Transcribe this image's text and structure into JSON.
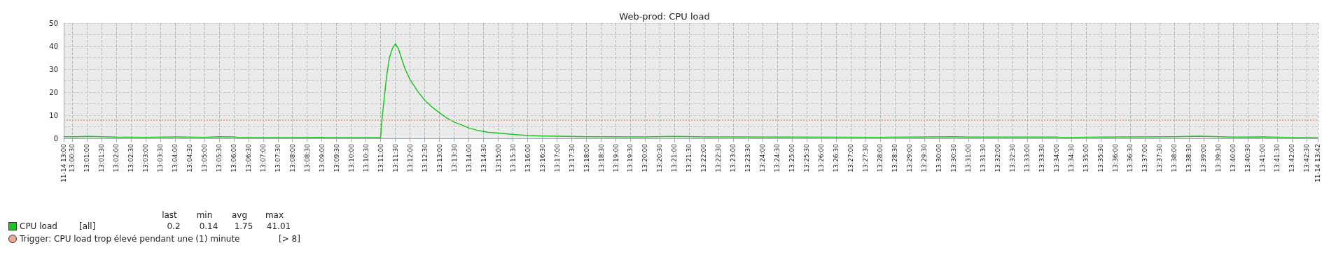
{
  "chart_data": {
    "type": "line",
    "title": "Web-prod: CPU load",
    "xlim": [
      13.0036,
      13.7147
    ],
    "xticks": [
      {
        "value": 13.0036,
        "label": "11-14 13:00"
      },
      {
        "value": 13.00833,
        "label": "13:00:30"
      },
      {
        "value": 13.01667,
        "label": "13:01:00"
      },
      {
        "value": 13.025,
        "label": "13:01:30"
      },
      {
        "value": 13.03333,
        "label": "13:02:00"
      },
      {
        "value": 13.04167,
        "label": "13:02:30"
      },
      {
        "value": 13.05,
        "label": "13:03:00"
      },
      {
        "value": 13.05833,
        "label": "13:03:30"
      },
      {
        "value": 13.06667,
        "label": "13:04:00"
      },
      {
        "value": 13.075,
        "label": "13:04:30"
      },
      {
        "value": 13.08333,
        "label": "13:05:00"
      },
      {
        "value": 13.09167,
        "label": "13:05:30"
      },
      {
        "value": 13.1,
        "label": "13:06:00"
      },
      {
        "value": 13.10833,
        "label": "13:06:30"
      },
      {
        "value": 13.11667,
        "label": "13:07:00"
      },
      {
        "value": 13.125,
        "label": "13:07:30"
      },
      {
        "value": 13.13333,
        "label": "13:08:00"
      },
      {
        "value": 13.14167,
        "label": "13:08:30"
      },
      {
        "value": 13.15,
        "label": "13:09:00"
      },
      {
        "value": 13.15833,
        "label": "13:09:30"
      },
      {
        "value": 13.16667,
        "label": "13:10:00"
      },
      {
        "value": 13.175,
        "label": "13:10:30"
      },
      {
        "value": 13.18333,
        "label": "13:11:00"
      },
      {
        "value": 13.19167,
        "label": "13:11:30"
      },
      {
        "value": 13.2,
        "label": "13:12:00"
      },
      {
        "value": 13.20833,
        "label": "13:12:30"
      },
      {
        "value": 13.21667,
        "label": "13:13:00"
      },
      {
        "value": 13.225,
        "label": "13:13:30"
      },
      {
        "value": 13.23333,
        "label": "13:14:00"
      },
      {
        "value": 13.24167,
        "label": "13:14:30"
      },
      {
        "value": 13.25,
        "label": "13:15:00"
      },
      {
        "value": 13.25833,
        "label": "13:15:30"
      },
      {
        "value": 13.26667,
        "label": "13:16:00"
      },
      {
        "value": 13.275,
        "label": "13:16:30"
      },
      {
        "value": 13.28333,
        "label": "13:17:00"
      },
      {
        "value": 13.29167,
        "label": "13:17:30"
      },
      {
        "value": 13.3,
        "label": "13:18:00"
      },
      {
        "value": 13.30833,
        "label": "13:18:30"
      },
      {
        "value": 13.31667,
        "label": "13:19:00"
      },
      {
        "value": 13.325,
        "label": "13:19:30"
      },
      {
        "value": 13.33333,
        "label": "13:20:00"
      },
      {
        "value": 13.34167,
        "label": "13:20:30"
      },
      {
        "value": 13.35,
        "label": "13:21:00"
      },
      {
        "value": 13.35833,
        "label": "13:21:30"
      },
      {
        "value": 13.36667,
        "label": "13:22:00"
      },
      {
        "value": 13.375,
        "label": "13:22:30"
      },
      {
        "value": 13.38333,
        "label": "13:23:00"
      },
      {
        "value": 13.39167,
        "label": "13:23:30"
      },
      {
        "value": 13.4,
        "label": "13:24:00"
      },
      {
        "value": 13.40833,
        "label": "13:24:30"
      },
      {
        "value": 13.41667,
        "label": "13:25:00"
      },
      {
        "value": 13.425,
        "label": "13:25:30"
      },
      {
        "value": 13.43333,
        "label": "13:26:00"
      },
      {
        "value": 13.44167,
        "label": "13:26:30"
      },
      {
        "value": 13.45,
        "label": "13:27:00"
      },
      {
        "value": 13.45833,
        "label": "13:27:30"
      },
      {
        "value": 13.46667,
        "label": "13:28:00"
      },
      {
        "value": 13.475,
        "label": "13:28:30"
      },
      {
        "value": 13.48333,
        "label": "13:29:00"
      },
      {
        "value": 13.49167,
        "label": "13:29:30"
      },
      {
        "value": 13.5,
        "label": "13:30:00"
      },
      {
        "value": 13.50833,
        "label": "13:30:30"
      },
      {
        "value": 13.51667,
        "label": "13:31:00"
      },
      {
        "value": 13.525,
        "label": "13:31:30"
      },
      {
        "value": 13.53333,
        "label": "13:32:00"
      },
      {
        "value": 13.54167,
        "label": "13:32:30"
      },
      {
        "value": 13.55,
        "label": "13:33:00"
      },
      {
        "value": 13.55833,
        "label": "13:33:30"
      },
      {
        "value": 13.56667,
        "label": "13:34:00"
      },
      {
        "value": 13.575,
        "label": "13:34:30"
      },
      {
        "value": 13.58333,
        "label": "13:35:00"
      },
      {
        "value": 13.59167,
        "label": "13:35:30"
      },
      {
        "value": 13.6,
        "label": "13:36:00"
      },
      {
        "value": 13.60833,
        "label": "13:36:30"
      },
      {
        "value": 13.61667,
        "label": "13:37:00"
      },
      {
        "value": 13.625,
        "label": "13:37:30"
      },
      {
        "value": 13.63333,
        "label": "13:38:00"
      },
      {
        "value": 13.64167,
        "label": "13:38:30"
      },
      {
        "value": 13.65,
        "label": "13:39:00"
      },
      {
        "value": 13.65833,
        "label": "13:39:30"
      },
      {
        "value": 13.66667,
        "label": "13:40:00"
      },
      {
        "value": 13.675,
        "label": "13:40:30"
      },
      {
        "value": 13.68333,
        "label": "13:41:00"
      },
      {
        "value": 13.69167,
        "label": "13:41:30"
      },
      {
        "value": 13.7,
        "label": "13:42:00"
      },
      {
        "value": 13.70833,
        "label": "13:42:30"
      },
      {
        "value": 13.7147,
        "label": "11-14 13:42"
      }
    ],
    "ylim": [
      0,
      50
    ],
    "yticks": [
      0,
      {
        "value": 5,
        "label": null
      },
      10,
      {
        "value": 15,
        "label": null
      },
      20,
      {
        "value": 25,
        "label": null
      },
      30,
      {
        "value": 35,
        "label": null
      },
      40,
      {
        "value": 45,
        "label": null
      },
      50
    ],
    "grid": true,
    "legend": "bottom",
    "marker": "none",
    "line_style": "solid",
    "series": [
      {
        "name": "CPU load",
        "color": "#1ec51e",
        "x": [
          13.0036,
          13.0111,
          13.0167,
          13.025,
          13.0333,
          13.05,
          13.0667,
          13.0833,
          13.0917,
          13.1,
          13.1028,
          13.1333,
          13.15,
          13.1528,
          13.1833,
          13.1839,
          13.185,
          13.1867,
          13.1883,
          13.19,
          13.1917,
          13.1933,
          13.195,
          13.1972,
          13.2,
          13.2042,
          13.2083,
          13.2125,
          13.2167,
          13.2208,
          13.225,
          13.2292,
          13.2333,
          13.2389,
          13.2444,
          13.25,
          13.2583,
          13.2667,
          13.275,
          13.2833,
          13.3,
          13.3333,
          13.35,
          13.3667,
          13.4167,
          13.4667,
          13.5083,
          13.5167,
          13.5667,
          13.5694,
          13.5917,
          13.6333,
          13.6472,
          13.6667,
          13.6833,
          13.7,
          13.7147
        ],
        "values": [
          0.7,
          0.7,
          0.8,
          0.7,
          0.5,
          0.4,
          0.6,
          0.4,
          0.7,
          0.6,
          0.3,
          0.3,
          0.4,
          0.3,
          0.3,
          7,
          15,
          27,
          35,
          39,
          41.01,
          39,
          35,
          30,
          25.5,
          20.5,
          16.5,
          13.5,
          11,
          8.8,
          7,
          5.8,
          4.5,
          3.3,
          2.6,
          2.3,
          1.7,
          1.2,
          1.0,
          0.9,
          0.7,
          0.6,
          0.8,
          0.6,
          0.5,
          0.4,
          0.7,
          0.5,
          0.5,
          0.3,
          0.5,
          0.7,
          0.9,
          0.5,
          0.6,
          0.3,
          0.2
        ]
      }
    ],
    "ref_lines": [
      {
        "axis": "y",
        "value": 8,
        "label": "Trigger: CPU load trop élevé pendant une (1) minute",
        "color": "#f0a890",
        "line_style": "dotted"
      }
    ],
    "annotations": [
      "[all]",
      "last",
      "0.2",
      "min",
      "0.14",
      "avg",
      "1.75",
      "max",
      "41.01",
      "[> 8]"
    ]
  }
}
